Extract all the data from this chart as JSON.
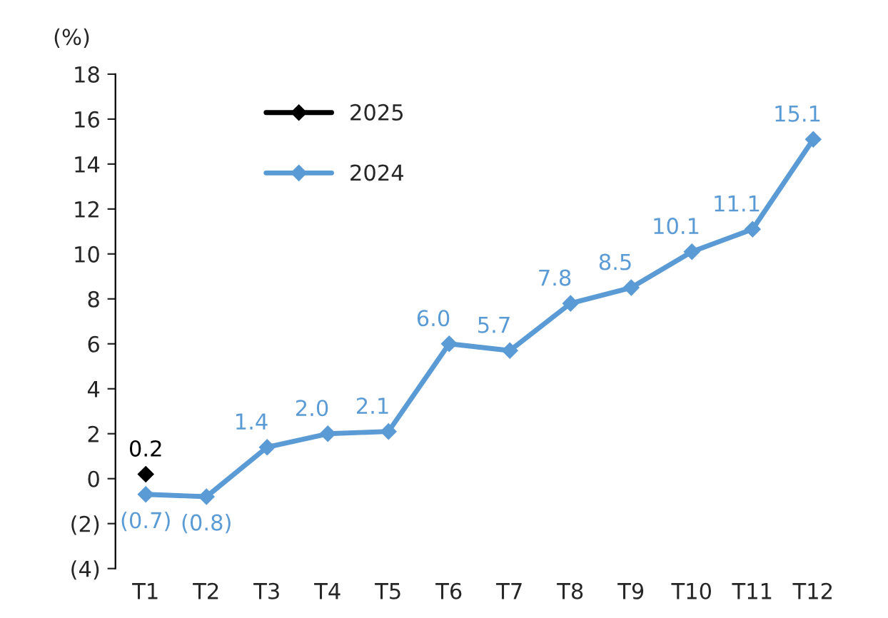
{
  "chart_data": {
    "type": "line",
    "ylabel": "(%)",
    "categories": [
      "T1",
      "T2",
      "T3",
      "T4",
      "T5",
      "T6",
      "T7",
      "T8",
      "T9",
      "T10",
      "T11",
      "T12"
    ],
    "series": [
      {
        "name": "2025",
        "color": "#000000",
        "values": [
          0.2,
          null,
          null,
          null,
          null,
          null,
          null,
          null,
          null,
          null,
          null,
          null
        ],
        "value_labels": [
          "0.2",
          null,
          null,
          null,
          null,
          null,
          null,
          null,
          null,
          null,
          null,
          null
        ]
      },
      {
        "name": "2024",
        "color": "#5b9bd5",
        "values": [
          -0.7,
          -0.8,
          1.4,
          2.0,
          2.1,
          6.0,
          5.7,
          7.8,
          8.5,
          10.1,
          11.1,
          15.1
        ],
        "value_labels": [
          "(0.7)",
          "(0.8)",
          "1.4",
          "2.0",
          "2.1",
          "6.0",
          "5.7",
          "7.8",
          "8.5",
          "10.1",
          "11.1",
          "15.1"
        ]
      }
    ],
    "ylim": [
      -4,
      18
    ],
    "yticks": [
      {
        "value": -4,
        "label": "(4)"
      },
      {
        "value": -2,
        "label": "(2)"
      },
      0,
      2,
      4,
      6,
      8,
      10,
      12,
      14,
      16,
      18
    ],
    "marker": "diamond",
    "line_style": "solid",
    "grid": false,
    "legend": "top left"
  }
}
